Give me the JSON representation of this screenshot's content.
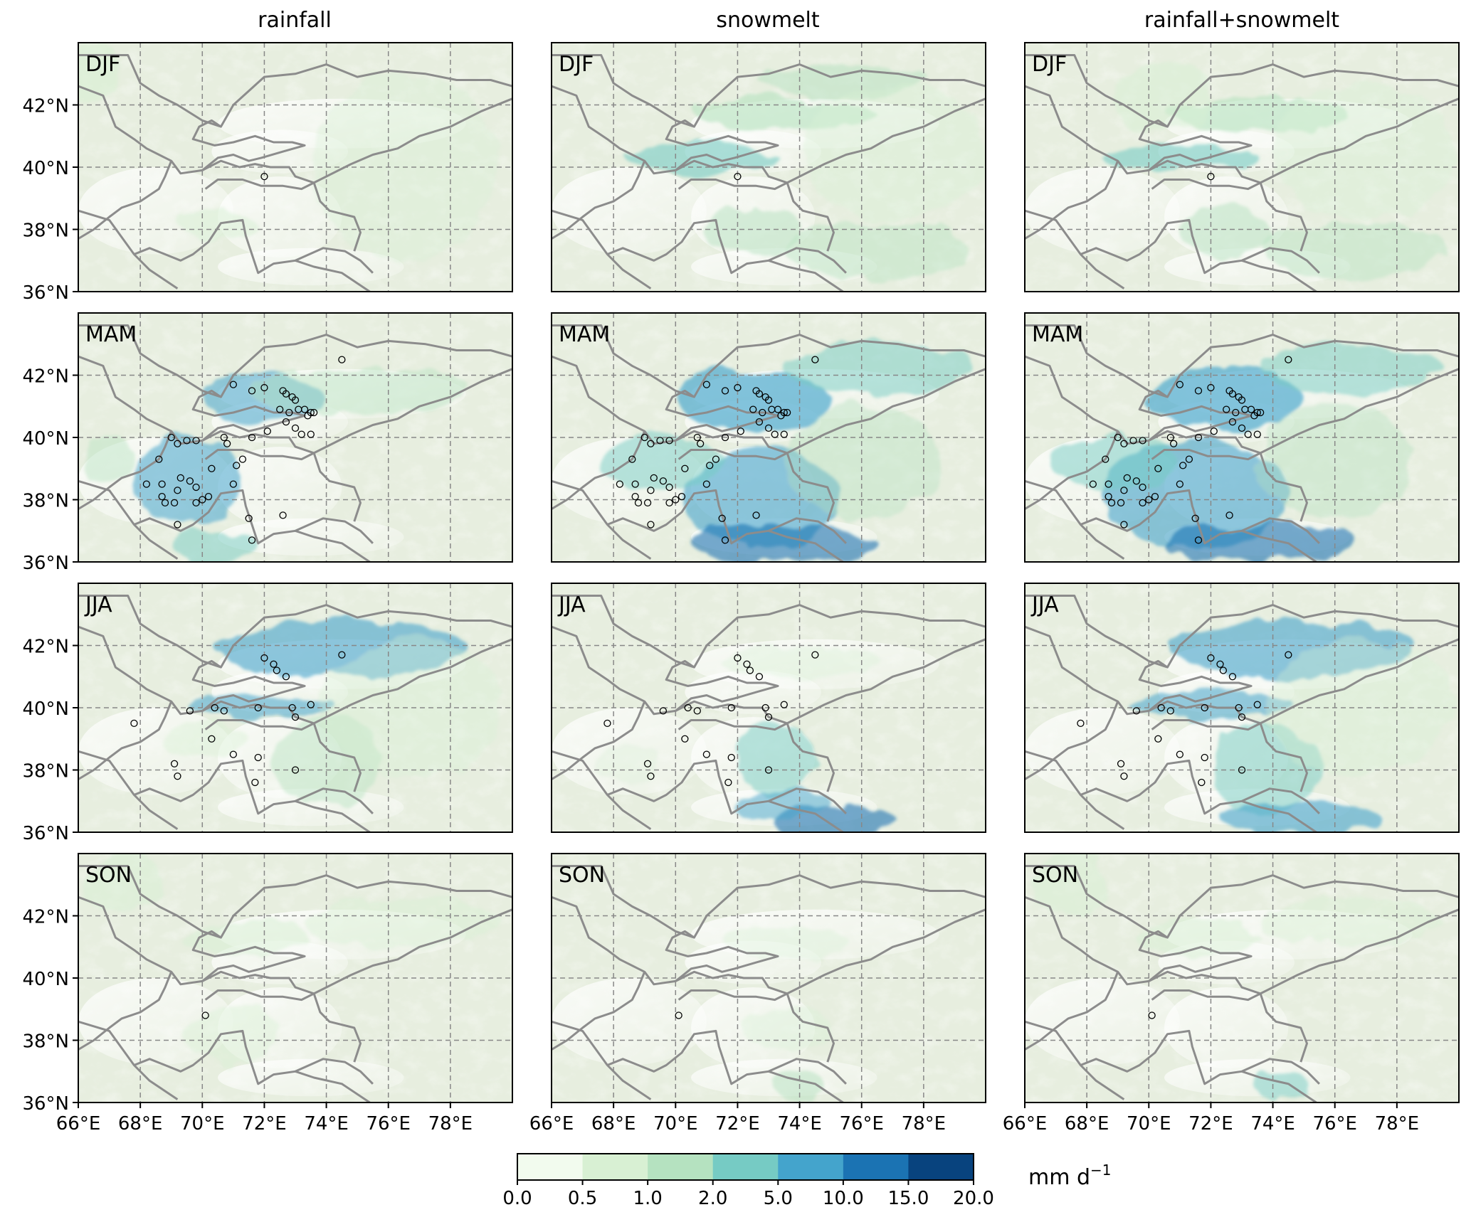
{
  "chart_data": {
    "type": "heatmap",
    "columns": [
      "rainfall",
      "snowmelt",
      "rainfall+snowmelt"
    ],
    "rows": [
      "DJF",
      "MAM",
      "JJA",
      "SON"
    ],
    "x_ticks": [
      "66°E",
      "68°E",
      "70°E",
      "72°E",
      "74°E",
      "76°E",
      "78°E"
    ],
    "x_tick_values": [
      66,
      68,
      70,
      72,
      74,
      76,
      78
    ],
    "xlim": [
      66,
      80
    ],
    "y_ticks": [
      "36°N",
      "38°N",
      "40°N",
      "42°N"
    ],
    "y_tick_values": [
      36,
      38,
      40,
      42
    ],
    "ylim": [
      36,
      44
    ],
    "grid": true,
    "colorbar": {
      "levels": [
        "0.0",
        "0.5",
        "1.0",
        "2.0",
        "5.0",
        "10.0",
        "15.0",
        "20.0"
      ],
      "colors": [
        "#f2fbee",
        "#d8f0d3",
        "#b5e2c0",
        "#76cbc4",
        "#44a4cc",
        "#1b73b3",
        "#08437e"
      ],
      "unit": "mm d",
      "unit_exp": "−1"
    },
    "colors": {
      "border": "#8c8c8c",
      "grid": "#888888",
      "terrain_base": "#e7eedf"
    },
    "stations": {
      "DJF": [
        [
          72.0,
          39.7
        ]
      ],
      "MAM": [
        [
          74.5,
          42.5
        ],
        [
          71.0,
          41.7
        ],
        [
          71.6,
          41.5
        ],
        [
          72.0,
          41.6
        ],
        [
          72.6,
          41.5
        ],
        [
          72.7,
          41.4
        ],
        [
          72.9,
          41.3
        ],
        [
          73.0,
          41.2
        ],
        [
          72.5,
          40.9
        ],
        [
          72.8,
          40.8
        ],
        [
          73.1,
          40.9
        ],
        [
          73.3,
          40.9
        ],
        [
          73.4,
          40.7
        ],
        [
          73.5,
          40.8
        ],
        [
          73.6,
          40.8
        ],
        [
          72.7,
          40.5
        ],
        [
          73.0,
          40.3
        ],
        [
          73.2,
          40.1
        ],
        [
          73.5,
          40.1
        ],
        [
          72.1,
          40.2
        ],
        [
          69.0,
          40.0
        ],
        [
          69.2,
          39.8
        ],
        [
          69.5,
          39.9
        ],
        [
          69.8,
          39.9
        ],
        [
          70.7,
          40.0
        ],
        [
          70.8,
          39.8
        ],
        [
          71.6,
          40.0
        ],
        [
          68.6,
          39.3
        ],
        [
          71.3,
          39.3
        ],
        [
          71.1,
          39.1
        ],
        [
          70.3,
          39.0
        ],
        [
          68.2,
          38.5
        ],
        [
          68.7,
          38.5
        ],
        [
          69.3,
          38.7
        ],
        [
          69.6,
          38.6
        ],
        [
          69.8,
          38.4
        ],
        [
          69.2,
          38.3
        ],
        [
          71.0,
          38.5
        ],
        [
          68.7,
          38.1
        ],
        [
          68.8,
          37.9
        ],
        [
          69.1,
          37.9
        ],
        [
          70.0,
          38.0
        ],
        [
          70.2,
          38.1
        ],
        [
          69.8,
          37.9
        ],
        [
          69.2,
          37.2
        ],
        [
          71.5,
          37.4
        ],
        [
          72.6,
          37.5
        ],
        [
          71.6,
          36.7
        ]
      ],
      "JJA": [
        [
          72.0,
          41.6
        ],
        [
          72.3,
          41.4
        ],
        [
          72.4,
          41.2
        ],
        [
          72.7,
          41.0
        ],
        [
          74.5,
          41.7
        ],
        [
          67.8,
          39.5
        ],
        [
          69.6,
          39.9
        ],
        [
          70.4,
          40.0
        ],
        [
          70.7,
          39.9
        ],
        [
          71.8,
          40.0
        ],
        [
          72.9,
          40.0
        ],
        [
          73.0,
          39.7
        ],
        [
          73.5,
          40.1
        ],
        [
          70.3,
          39.0
        ],
        [
          71.0,
          38.5
        ],
        [
          71.8,
          38.4
        ],
        [
          73.0,
          38.0
        ],
        [
          69.1,
          38.2
        ],
        [
          69.2,
          37.8
        ],
        [
          71.7,
          37.6
        ]
      ],
      "SON": [
        [
          70.1,
          38.8
        ]
      ]
    }
  }
}
